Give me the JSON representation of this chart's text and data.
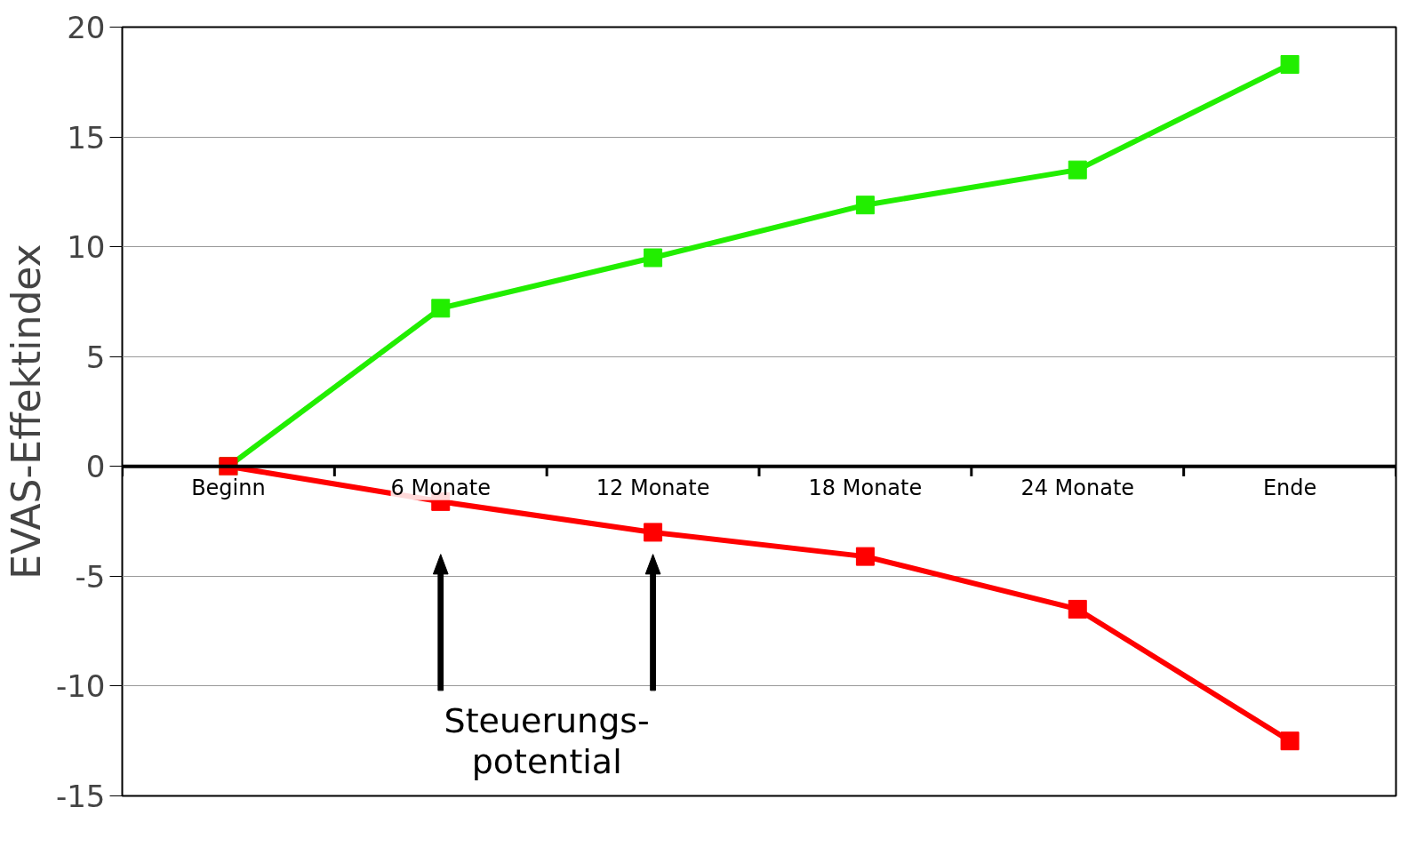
{
  "chart_data": {
    "type": "line",
    "ylabel": "EVAS-Effektindex",
    "categories": [
      "Beginn",
      "6 Monate",
      "12 Monate",
      "18 Monate",
      "24 Monate",
      "Ende"
    ],
    "series": [
      {
        "color": "#22ee00",
        "values": [
          0,
          7.2,
          9.5,
          11.9,
          13.5,
          18.3
        ]
      },
      {
        "color": "#ff0000",
        "values": [
          0,
          -1.6,
          -3.0,
          -4.1,
          -6.5,
          -12.5
        ]
      }
    ],
    "ylim": [
      -15,
      20
    ],
    "yticks": [
      -15,
      -10,
      -5,
      0,
      5,
      10,
      15,
      20
    ],
    "grid": "y",
    "marker": "square",
    "line_style": "solid",
    "annotations": [
      "Steuerungs-\npotential"
    ]
  }
}
